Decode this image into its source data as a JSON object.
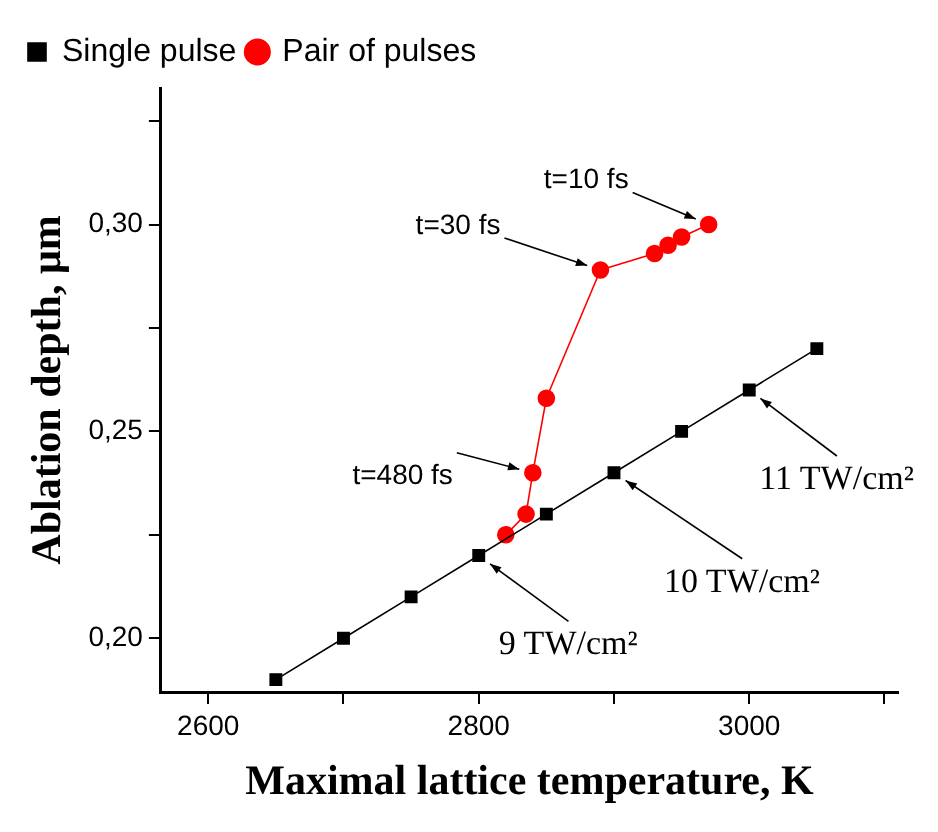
{
  "chart_data": {
    "type": "line",
    "xlabel": "Maximal lattice temperature, K",
    "ylabel": "Ablation depth, μm",
    "xlim": [
      2565,
      3110
    ],
    "ylim": [
      0.187,
      0.333
    ],
    "xticks": [
      2600,
      {
        "value": 2700,
        "label": null
      },
      2800,
      {
        "value": 2900,
        "label": null
      },
      3000,
      {
        "value": 3100,
        "label": null
      }
    ],
    "yticks": [
      {
        "value": 0.2,
        "label": "0,20"
      },
      {
        "value": 0.225,
        "label": null
      },
      {
        "value": 0.25,
        "label": "0,25"
      },
      {
        "value": 0.275,
        "label": null
      },
      {
        "value": 0.3,
        "label": "0,30"
      },
      {
        "value": 0.325,
        "label": null
      }
    ],
    "grid": false,
    "legend": "top left",
    "line_style": "solid",
    "series": [
      {
        "name": "Single pulse",
        "color": "#000000",
        "marker": "square",
        "x": [
          2650,
          2700,
          2750,
          2800,
          2850,
          2900,
          2950,
          3000,
          3050
        ],
        "values": [
          0.19,
          0.2,
          0.21,
          0.22,
          0.23,
          0.24,
          0.25,
          0.26,
          0.27
        ]
      },
      {
        "name": "Pair of pulses",
        "color": "#ff0000",
        "marker": "circle",
        "x": [
          2820,
          2835,
          2840,
          2850,
          2890,
          2930,
          2940,
          2950,
          2970
        ],
        "values": [
          0.225,
          0.23,
          0.24,
          0.258,
          0.289,
          0.293,
          0.295,
          0.297,
          0.3
        ]
      }
    ],
    "annotations": [
      {
        "text": "t=10 fs",
        "x": 2970,
        "y": 0.3
      },
      {
        "text": "t=30 fs",
        "x": 2890,
        "y": 0.289
      },
      {
        "text": "t=480 fs",
        "x": 2840,
        "y": 0.24
      },
      {
        "text": "9 TW/cm²",
        "x": 2800,
        "y": 0.22
      },
      {
        "text": "10 TW/cm²",
        "x": 2900,
        "y": 0.24
      },
      {
        "text": "11 TW/cm²",
        "x": 3000,
        "y": 0.26
      }
    ]
  }
}
